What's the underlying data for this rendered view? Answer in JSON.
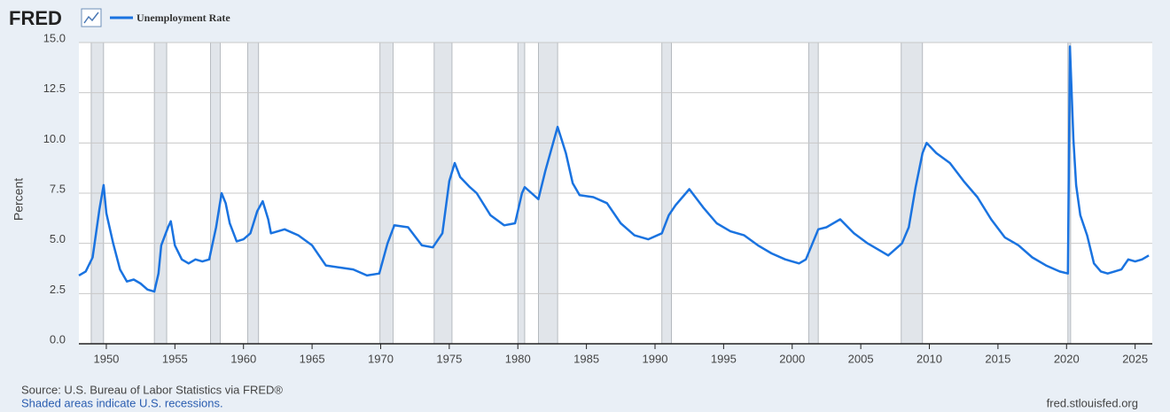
{
  "chart_data": {
    "type": "line",
    "logo": "FRED",
    "y_label": "Percent",
    "source": "Source: U.S. Bureau of Labor Statistics via FRED®",
    "note": "Shaded areas indicate U.S. recessions.",
    "url": "fred.stlouisfed.org",
    "xlim": [
      1948,
      2026.25
    ],
    "xticks": [
      1950,
      1955,
      1960,
      1965,
      1970,
      1975,
      1980,
      1985,
      1990,
      1995,
      2000,
      2005,
      2010,
      2015,
      2020,
      2025
    ],
    "ylim": [
      0,
      15
    ],
    "yticks": [
      {
        "value": 0,
        "label": "0.0"
      },
      {
        "value": 2.5,
        "label": "2.5"
      },
      {
        "value": 5,
        "label": "5.0"
      },
      {
        "value": 7.5,
        "label": "7.5"
      },
      {
        "value": 10,
        "label": "10.0"
      },
      {
        "value": 12.5,
        "label": "12.5"
      },
      {
        "value": 15,
        "label": "15.0"
      }
    ],
    "grid": true,
    "recessions": [
      [
        1948.9,
        1949.8
      ],
      [
        1953.5,
        1954.4
      ],
      [
        1957.6,
        1958.3
      ],
      [
        1960.3,
        1961.1
      ],
      [
        1969.95,
        1970.9
      ],
      [
        1973.9,
        1975.2
      ],
      [
        1980.0,
        1980.5
      ],
      [
        1981.5,
        1982.9
      ],
      [
        1990.5,
        1991.2
      ],
      [
        2001.2,
        2001.9
      ],
      [
        2007.95,
        2009.5
      ],
      [
        2020.1,
        2020.3
      ]
    ],
    "x": [
      1948.0,
      1948.5,
      1949.0,
      1949.5,
      1949.8,
      1950.0,
      1950.5,
      1951.0,
      1951.5,
      1952.0,
      1952.5,
      1953.0,
      1953.5,
      1953.8,
      1954.0,
      1954.5,
      1954.7,
      1955.0,
      1955.5,
      1956.0,
      1956.5,
      1957.0,
      1957.5,
      1958.0,
      1958.4,
      1958.7,
      1959.0,
      1959.5,
      1960.0,
      1960.5,
      1961.0,
      1961.4,
      1961.8,
      1962.0,
      1963.0,
      1964.0,
      1965.0,
      1966.0,
      1967.0,
      1968.0,
      1969.0,
      1969.9,
      1970.5,
      1971.0,
      1972.0,
      1973.0,
      1973.8,
      1974.5,
      1975.0,
      1975.4,
      1975.8,
      1976.5,
      1977.0,
      1978.0,
      1979.0,
      1979.8,
      1980.3,
      1980.5,
      1981.0,
      1981.5,
      1982.0,
      1982.9,
      1983.5,
      1984.0,
      1984.5,
      1985.5,
      1986.5,
      1987.5,
      1988.5,
      1989.5,
      1990.5,
      1991.0,
      1991.5,
      1992.5,
      1993.5,
      1994.5,
      1995.5,
      1996.5,
      1997.5,
      1998.5,
      1999.5,
      2000.5,
      2001.0,
      2001.9,
      2002.5,
      2003.5,
      2004.5,
      2005.5,
      2006.5,
      2007.0,
      2008.0,
      2008.5,
      2009.0,
      2009.5,
      2009.8,
      2010.5,
      2011.5,
      2012.5,
      2013.5,
      2014.5,
      2015.5,
      2016.5,
      2017.5,
      2018.5,
      2019.5,
      2020.1,
      2020.25,
      2020.5,
      2020.7,
      2021.0,
      2021.5,
      2022.0,
      2022.5,
      2023.0,
      2023.5,
      2024.0,
      2024.5,
      2025.0,
      2025.5,
      2026.0
    ],
    "series": [
      {
        "name": "Unemployment Rate",
        "color": "#1a73e0",
        "values": [
          3.4,
          3.6,
          4.3,
          6.7,
          7.9,
          6.5,
          5.0,
          3.7,
          3.1,
          3.2,
          3.0,
          2.7,
          2.6,
          3.5,
          4.9,
          5.8,
          6.1,
          4.9,
          4.2,
          4.0,
          4.2,
          4.1,
          4.2,
          5.8,
          7.5,
          7.0,
          6.0,
          5.1,
          5.2,
          5.5,
          6.6,
          7.1,
          6.2,
          5.5,
          5.7,
          5.4,
          4.9,
          3.9,
          3.8,
          3.7,
          3.4,
          3.5,
          5.0,
          5.9,
          5.8,
          4.9,
          4.8,
          5.5,
          8.1,
          9.0,
          8.3,
          7.8,
          7.5,
          6.4,
          5.9,
          6.0,
          7.5,
          7.8,
          7.5,
          7.2,
          8.6,
          10.8,
          9.5,
          8.0,
          7.4,
          7.3,
          7.0,
          6.0,
          5.4,
          5.2,
          5.5,
          6.4,
          6.9,
          7.7,
          6.8,
          6.0,
          5.6,
          5.4,
          4.9,
          4.5,
          4.2,
          4.0,
          4.2,
          5.7,
          5.8,
          6.2,
          5.5,
          5.0,
          4.6,
          4.4,
          5.0,
          5.8,
          7.8,
          9.5,
          10.0,
          9.5,
          9.0,
          8.1,
          7.3,
          6.2,
          5.3,
          4.9,
          4.3,
          3.9,
          3.6,
          3.5,
          14.8,
          10.2,
          7.9,
          6.4,
          5.4,
          4.0,
          3.6,
          3.5,
          3.6,
          3.7,
          4.2,
          4.1,
          4.2,
          4.4
        ]
      }
    ]
  }
}
